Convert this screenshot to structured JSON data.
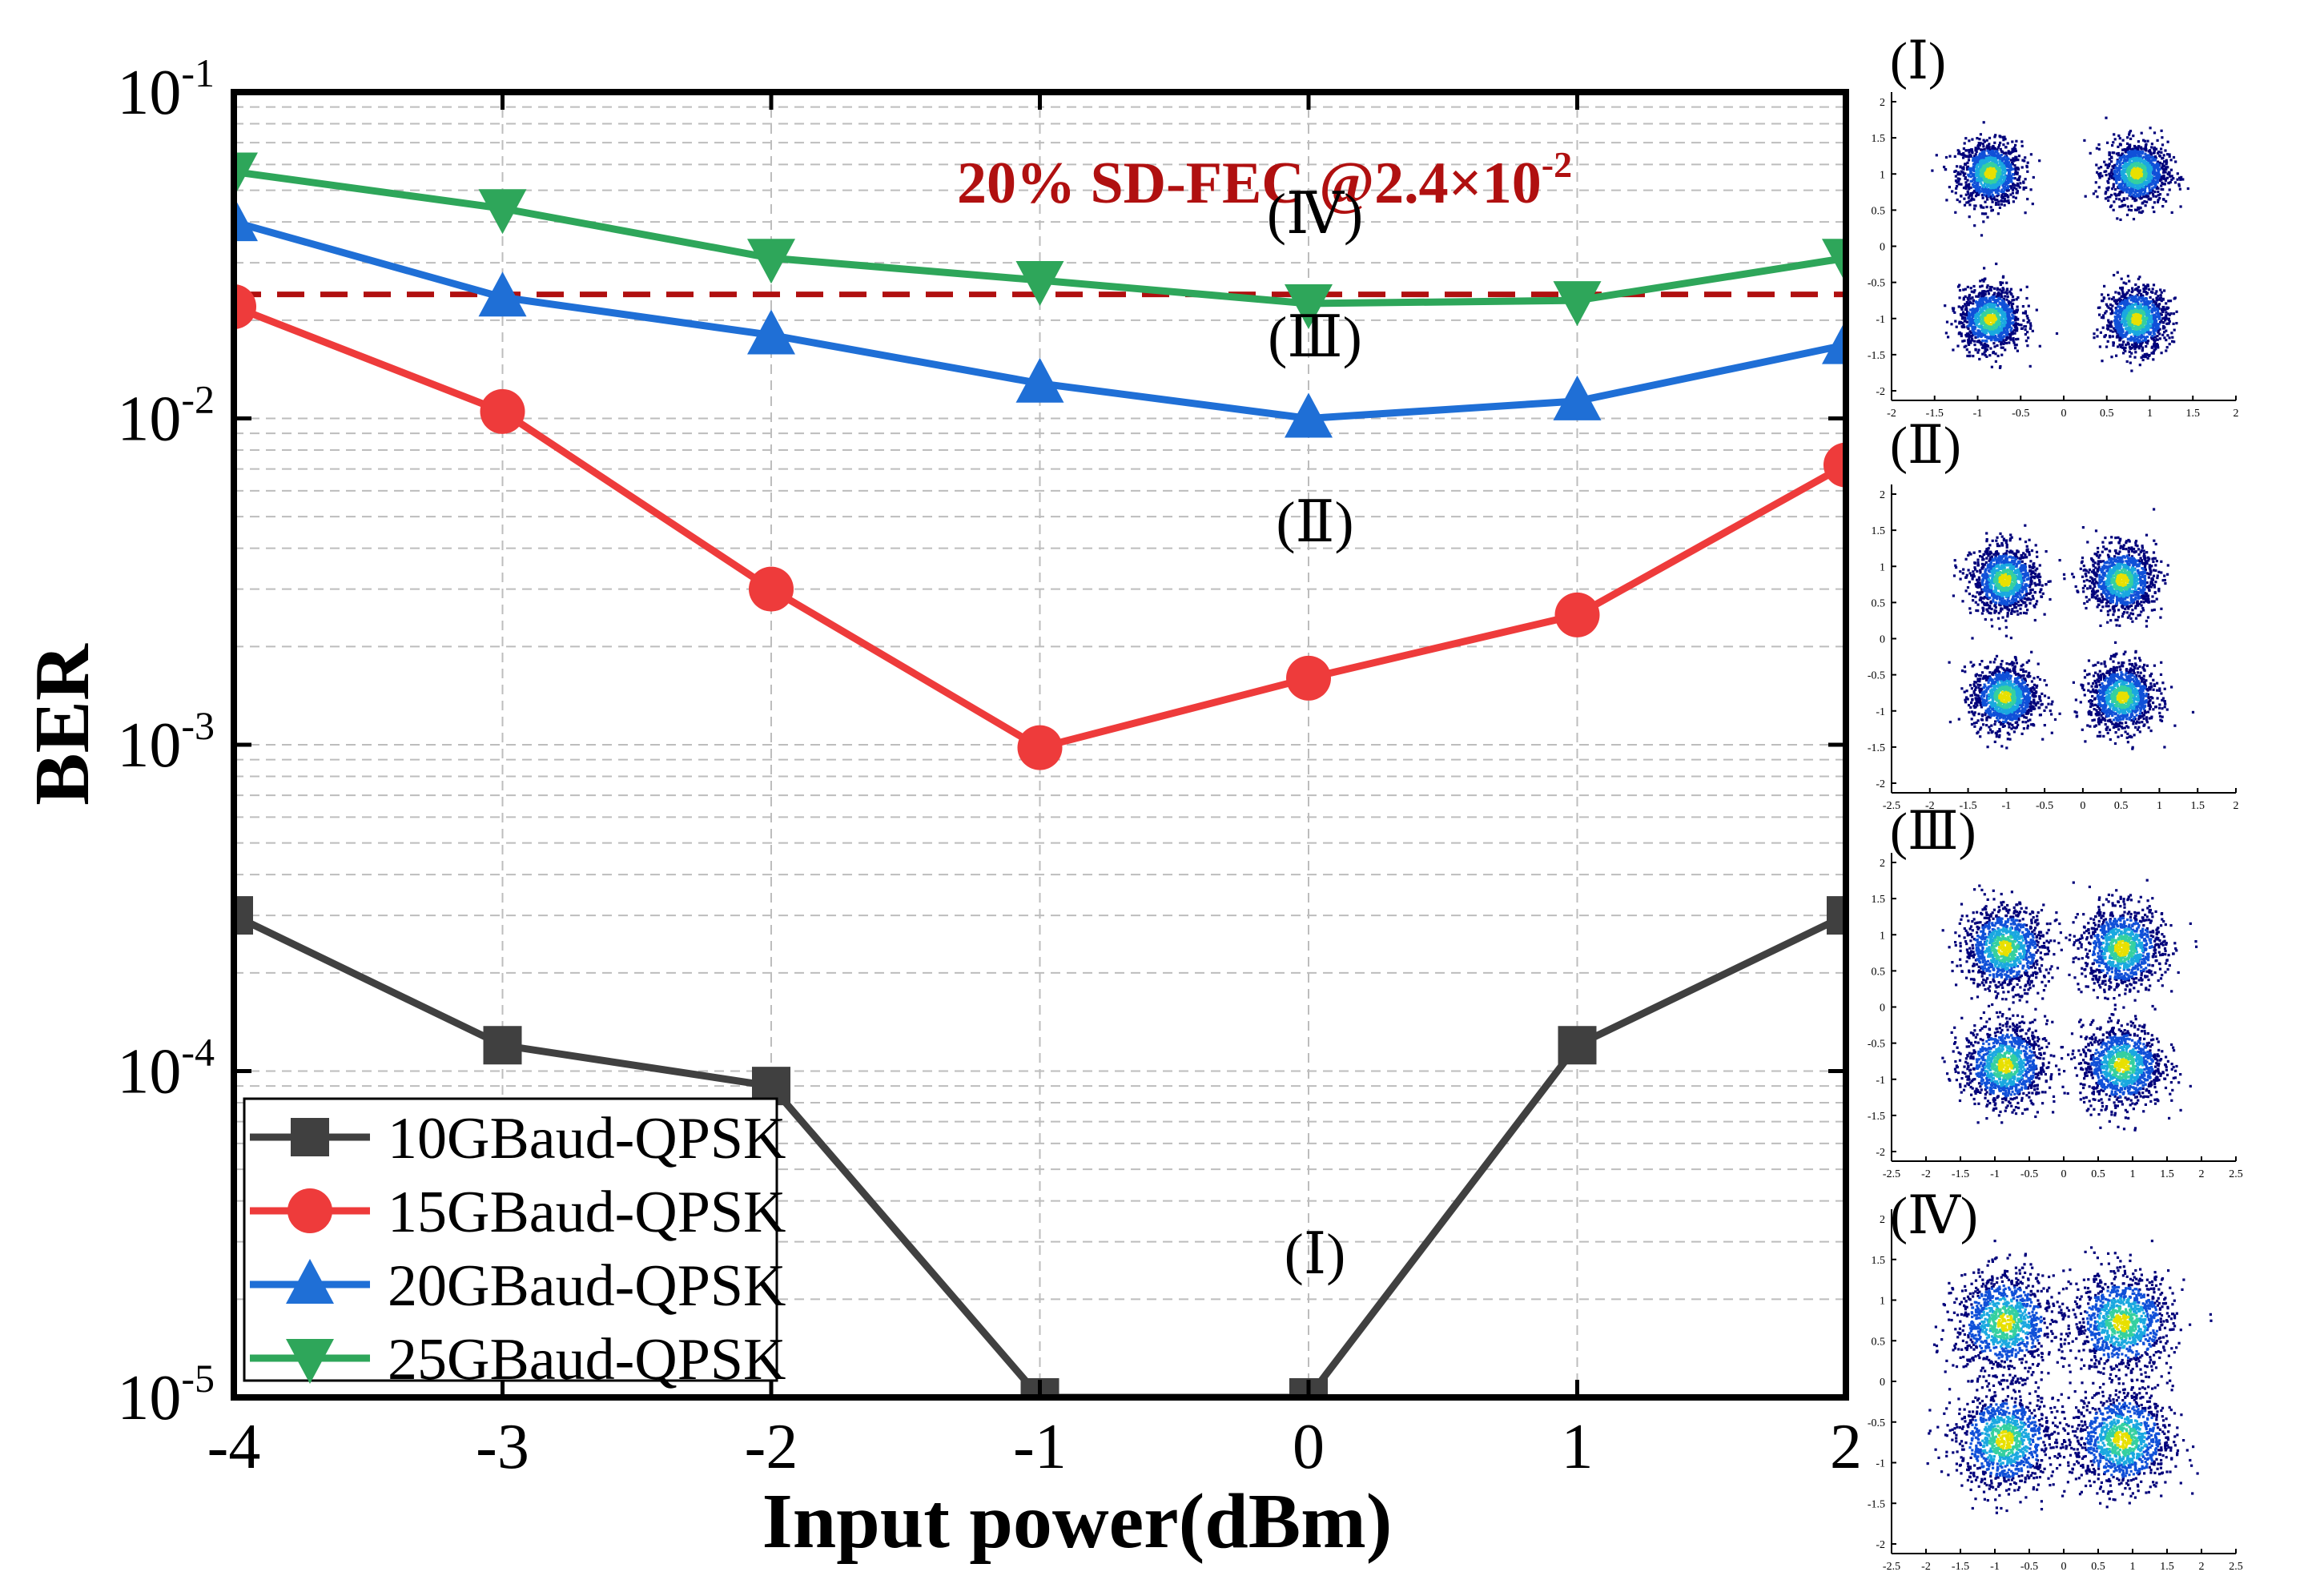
{
  "chart_data": {
    "type": "line",
    "title": "",
    "xlabel": "Input power(dBm)",
    "ylabel": "BER",
    "xlim": [
      -4,
      2
    ],
    "ylim": [
      1e-05,
      0.1
    ],
    "yscale": "log",
    "grid": true,
    "x_ticks": [
      "-4",
      "-3",
      "-2",
      "-1",
      "0",
      "1",
      "2"
    ],
    "y_ticks": [
      {
        "base": "10",
        "exp": "-1",
        "value": 0.1
      },
      {
        "base": "10",
        "exp": "-2",
        "value": 0.01
      },
      {
        "base": "10",
        "exp": "-3",
        "value": 0.001
      },
      {
        "base": "10",
        "exp": "-4",
        "value": 0.0001
      },
      {
        "base": "10",
        "exp": "-5",
        "value": 1e-05
      }
    ],
    "legend_position": "bottom-left",
    "x": [
      -4,
      -3,
      -2,
      -1,
      0,
      1,
      2
    ],
    "series": [
      {
        "name": "10GBaud-QPSK",
        "color": "#404040",
        "marker": "square",
        "values": [
          0.0003,
          0.00012,
          9e-05,
          1e-05,
          1e-05,
          0.00012,
          0.0003
        ]
      },
      {
        "name": "15GBaud-QPSK",
        "color": "#ee3b3b",
        "marker": "circle",
        "values": [
          0.022,
          0.0105,
          0.003,
          0.00098,
          0.0016,
          0.0025,
          0.0072
        ]
      },
      {
        "name": "20GBaud-QPSK",
        "color": "#1f6fd6",
        "marker": "triangle-up",
        "values": [
          0.04,
          0.0235,
          0.018,
          0.0128,
          0.01,
          0.0113,
          0.0168
        ]
      },
      {
        "name": "25GBaud-QPSK",
        "color": "#2ea65a",
        "marker": "triangle-down",
        "values": [
          0.057,
          0.044,
          0.031,
          0.0265,
          0.0225,
          0.023,
          0.031
        ]
      }
    ],
    "threshold": {
      "value": 0.024,
      "color": "#b01010",
      "label_main": "20% SD-FEC @2.4×10",
      "label_exp": "-2"
    },
    "annotations": [
      {
        "text": "(Ⅳ)",
        "x": 0,
        "y": 0.037
      },
      {
        "text": "(Ⅲ)",
        "x": 0,
        "y": 0.0155
      },
      {
        "text": "(Ⅱ)",
        "x": 0,
        "y": 0.0042
      },
      {
        "text": "(Ⅰ)",
        "x": 0,
        "y": 2.4e-05
      }
    ]
  },
  "insets": [
    {
      "label": "(Ⅰ)",
      "xticks": [
        "-2",
        "-1.5",
        "-1",
        "-0.5",
        "0",
        "0.5",
        "1",
        "1.5",
        "2"
      ],
      "yticks": [
        "2",
        "1.5",
        "1",
        "0.5",
        "0",
        "-0.5",
        "-1",
        "-1.5",
        "-2"
      ],
      "range": 2.0,
      "spread": 0.18
    },
    {
      "label": "(Ⅱ)",
      "xticks": [
        "-2.5",
        "-2",
        "-1.5",
        "-1",
        "-0.5",
        "0",
        "0.5",
        "1",
        "1.5",
        "2"
      ],
      "yticks": [
        "2",
        "1.5",
        "1",
        "0.5",
        "0",
        "-0.5",
        "-1",
        "-1.5",
        "-2"
      ],
      "range": 2.5,
      "spread": 0.24
    },
    {
      "label": "(Ⅲ)",
      "xticks": [
        "-2.5",
        "-2",
        "-1.5",
        "-1",
        "-0.5",
        "0",
        "0.5",
        "1",
        "1.5",
        "2",
        "2.5"
      ],
      "yticks": [
        "2",
        "1.5",
        "1",
        "0.5",
        "0",
        "-0.5",
        "-1",
        "-1.5",
        "-2"
      ],
      "range": 2.5,
      "spread": 0.3
    },
    {
      "label": "(Ⅳ)",
      "xticks": [
        "-2.5",
        "-2",
        "-1.5",
        "-1",
        "-0.5",
        "0",
        "0.5",
        "1",
        "1.5",
        "2",
        "2.5"
      ],
      "yticks": [
        "2",
        "1.5",
        "1",
        "0.5",
        "0",
        "-0.5",
        "-1",
        "-1.5",
        "-2"
      ],
      "range": 2.5,
      "spread": 0.36
    }
  ]
}
